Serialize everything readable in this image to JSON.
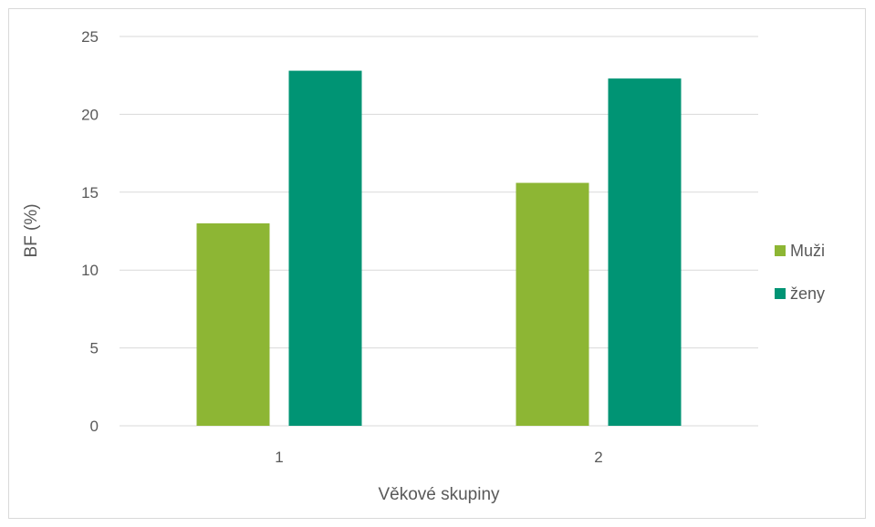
{
  "chart_data": {
    "type": "bar",
    "title": "",
    "xlabel": "Věkové skupiny",
    "ylabel": "BF (%)",
    "categories": [
      "1",
      "2"
    ],
    "ylim": [
      0,
      25
    ],
    "yticks": [
      "0",
      "5",
      "10",
      "15",
      "20",
      "25"
    ],
    "grid": true,
    "legend_position": "right",
    "series": [
      {
        "name": "Muži",
        "color": "#8db634",
        "values": [
          13.0,
          15.6
        ]
      },
      {
        "name": "ženy",
        "color": "#009474",
        "values": [
          22.8,
          22.3
        ]
      }
    ]
  }
}
